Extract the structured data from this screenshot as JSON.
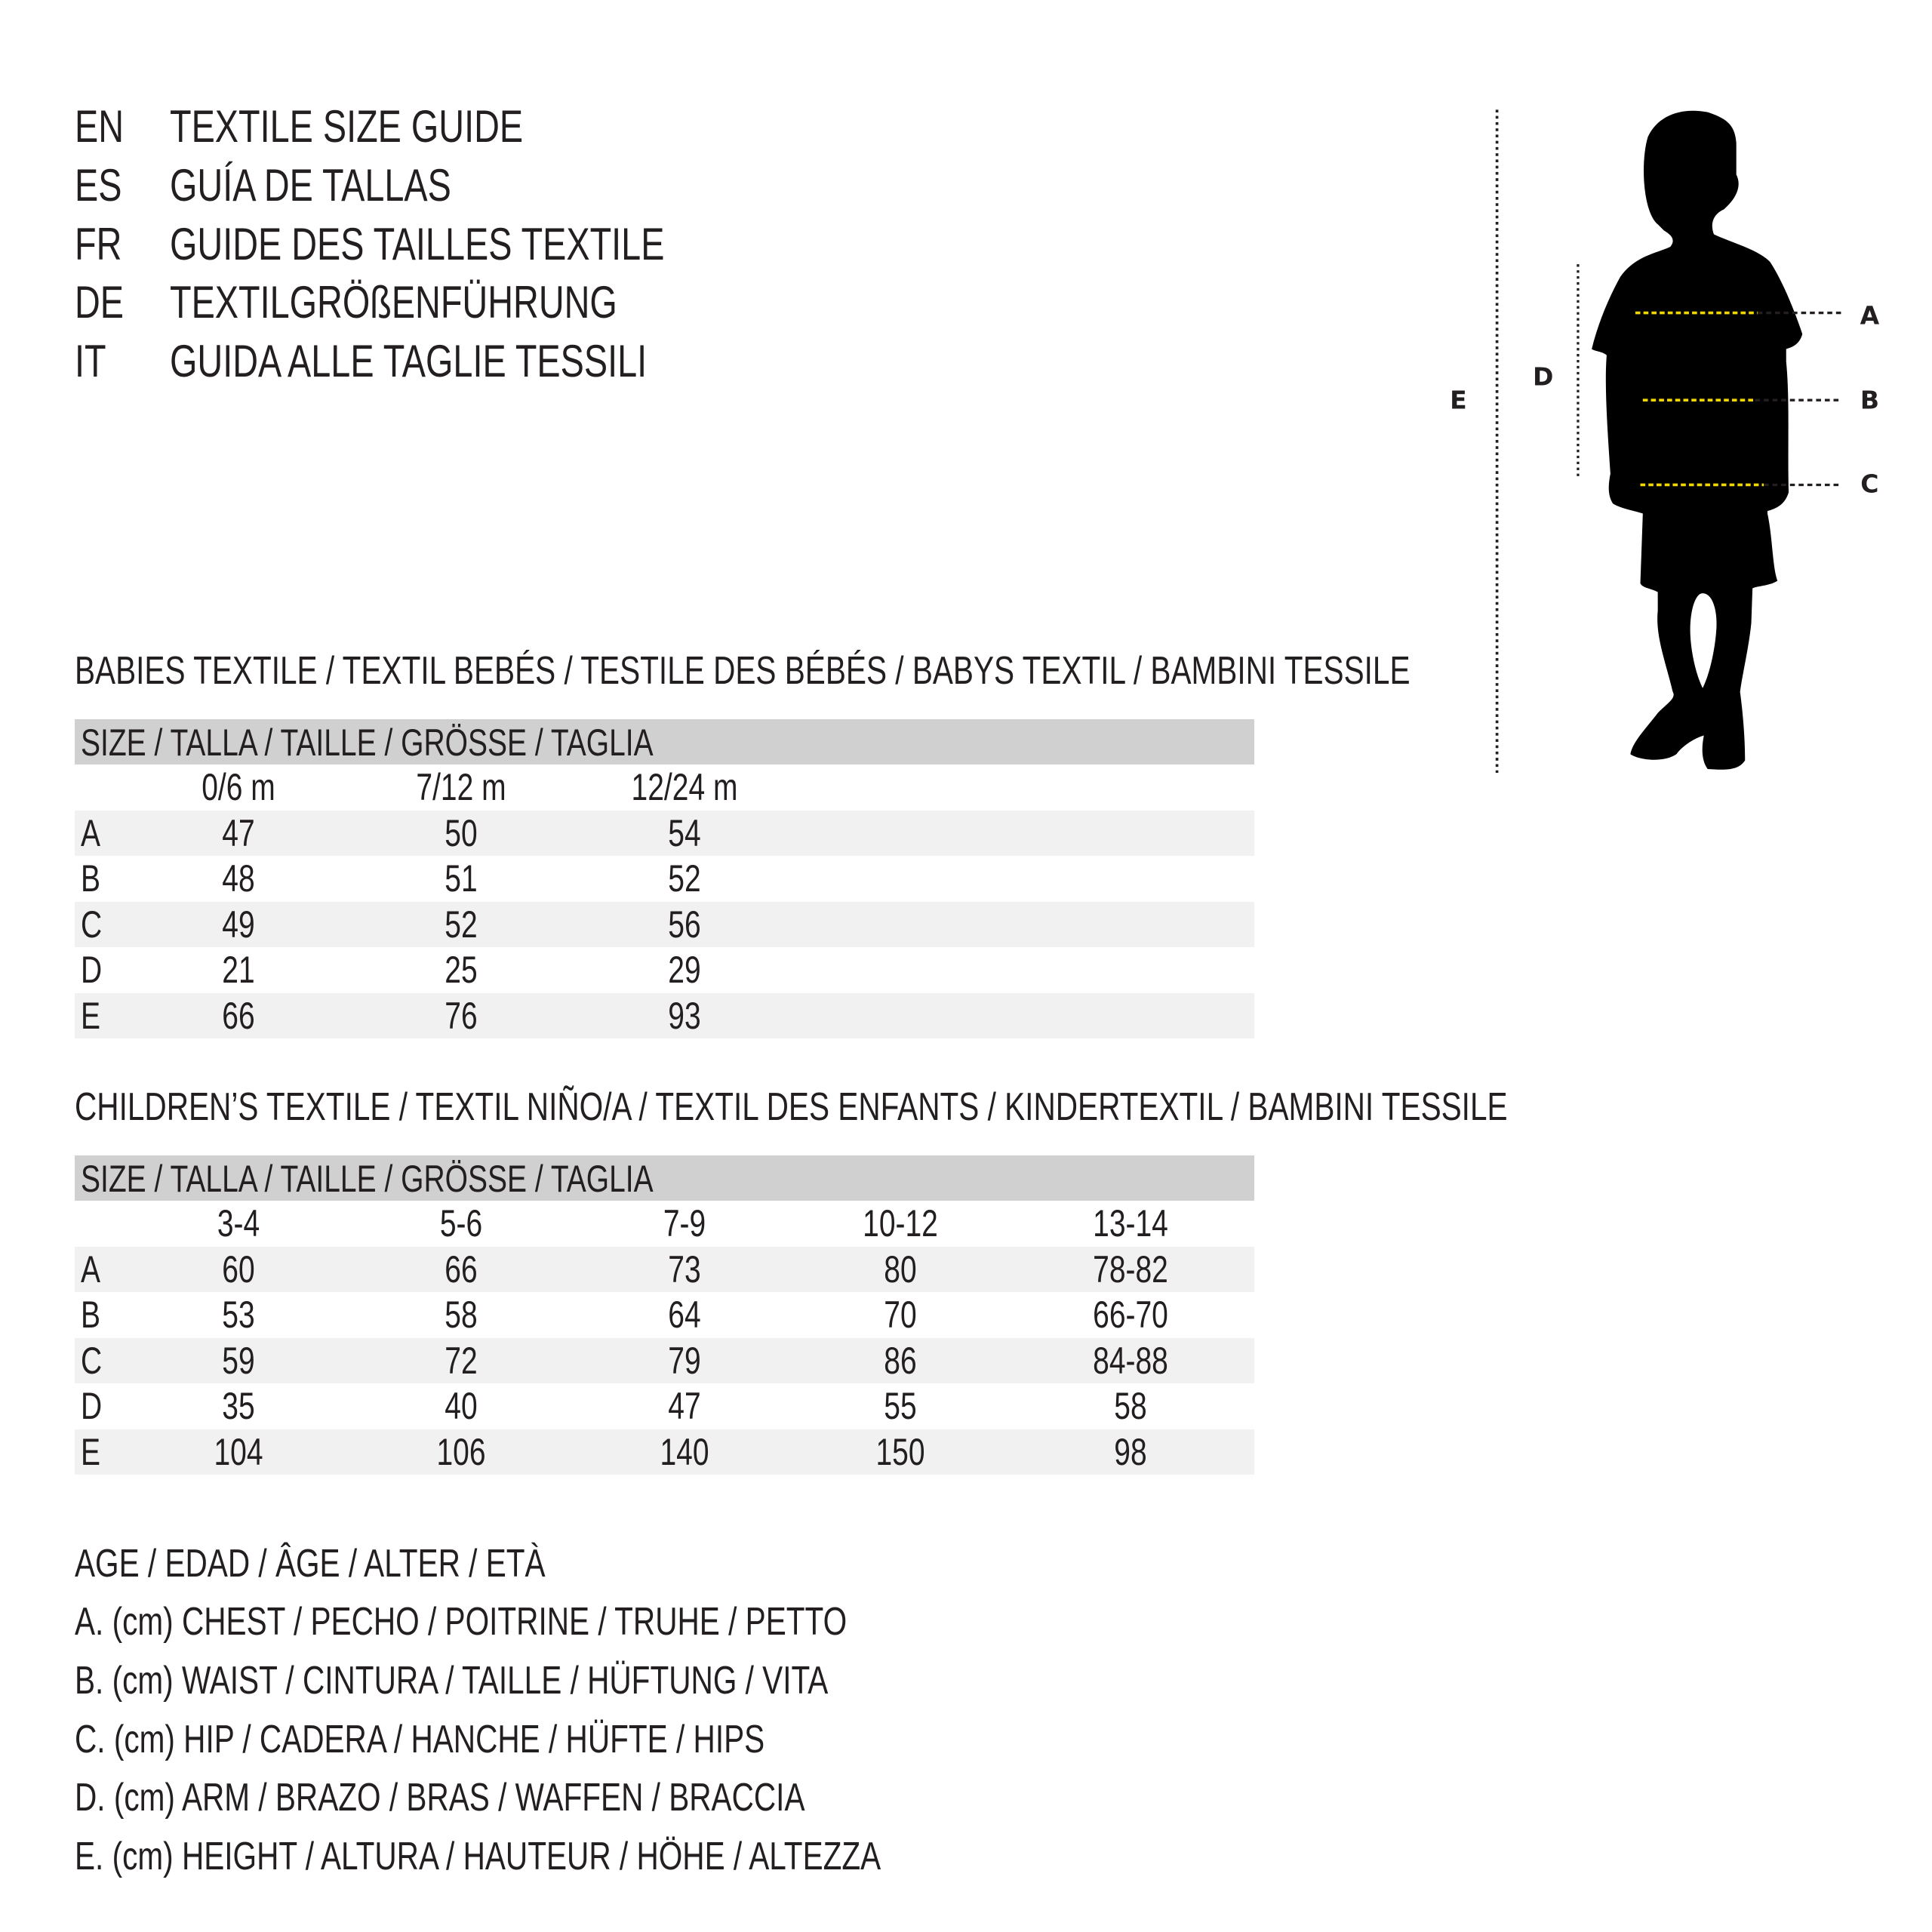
{
  "titles": [
    {
      "code": "EN",
      "text": "TEXTILE SIZE GUIDE"
    },
    {
      "code": "ES",
      "text": "GUÍA DE TALLAS"
    },
    {
      "code": "FR",
      "text": "GUIDE DES TAILLES TEXTILE"
    },
    {
      "code": "DE",
      "text": "TEXTILGRÖßENFÜHRUNG"
    },
    {
      "code": "IT",
      "text": "GUIDA ALLE TAGLIE TESSILI"
    }
  ],
  "babies": {
    "heading": "BABIES TEXTILE / TEXTIL BEBÉS / TESTILE DES BÉBÉS / BABYS TEXTIL / BAMBINI TESSILE",
    "size_label": "SIZE / TALLA / TAILLE / GRÖSSE / TAGLIA",
    "columns": [
      "0/6 m",
      "7/12 m",
      "12/24 m"
    ],
    "rows": [
      {
        "label": "A",
        "values": [
          "47",
          "50",
          "54"
        ]
      },
      {
        "label": "B",
        "values": [
          "48",
          "51",
          "52"
        ]
      },
      {
        "label": "C",
        "values": [
          "49",
          "52",
          "56"
        ]
      },
      {
        "label": "D",
        "values": [
          "21",
          "25",
          "29"
        ]
      },
      {
        "label": "E",
        "values": [
          "66",
          "76",
          "93"
        ]
      }
    ]
  },
  "children": {
    "heading": "CHILDREN’S TEXTILE / TEXTIL NIÑO/A / TEXTIL DES ENFANTS / KINDERTEXTIL / BAMBINI TESSILE",
    "size_label": "SIZE / TALLA / TAILLE / GRÖSSE / TAGLIA",
    "columns": [
      "3-4",
      "5-6",
      "7-9",
      "10-12",
      "13-14"
    ],
    "rows": [
      {
        "label": "A",
        "values": [
          "60",
          "66",
          "73",
          "80",
          "78-82"
        ]
      },
      {
        "label": "B",
        "values": [
          "53",
          "58",
          "64",
          "70",
          "66-70"
        ]
      },
      {
        "label": "C",
        "values": [
          "59",
          "72",
          "79",
          "86",
          "84-88"
        ]
      },
      {
        "label": "D",
        "values": [
          "35",
          "40",
          "47",
          "55",
          "58"
        ]
      },
      {
        "label": "E",
        "values": [
          "104",
          "106",
          "140",
          "150",
          "98"
        ]
      }
    ]
  },
  "legend": [
    "AGE / EDAD / ÂGE / ALTER / ETÀ",
    "A. (cm) CHEST / PECHO / POITRINE / TRUHE / PETTO",
    "B. (cm) WAIST / CINTURA / TAILLE / HÜFTUNG / VITA",
    "C. (cm) HIP / CADERA / HANCHE / HÜFTE / HIPS",
    "D. (cm) ARM / BRAZO / BRAS / WAFFEN / BRACCIA",
    "E. (cm) HEIGHT / ALTURA / HAUTEUR / HÖHE / ALTEZZA"
  ],
  "figure": {
    "labels": {
      "A": "A",
      "B": "B",
      "C": "C",
      "D": "D",
      "E": "E"
    },
    "colors": {
      "silhouette": "#000000",
      "measure_line": "#f2d600",
      "guide_line": "#231f20"
    }
  }
}
